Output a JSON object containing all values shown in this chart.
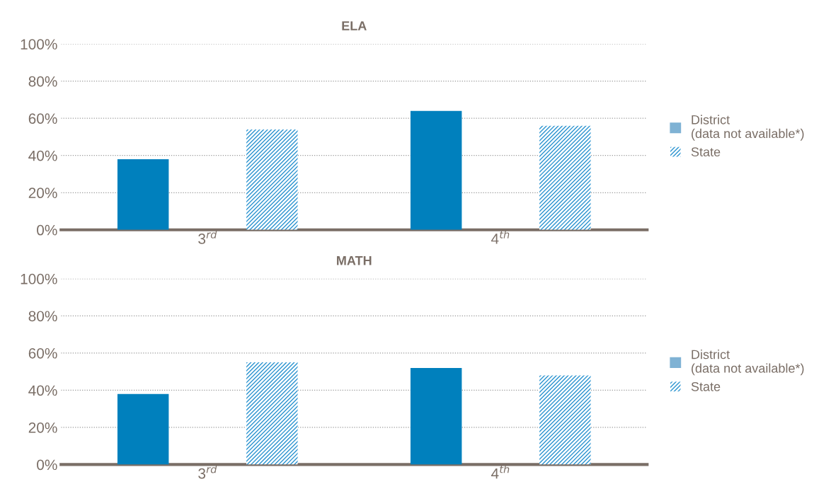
{
  "chart_data": [
    {
      "type": "bar",
      "title": "ELA",
      "categories": [
        "3$^{rd}$",
        "4$^{th}$"
      ],
      "series": [
        {
          "color": "#0080bd",
          "values": [
            38,
            64
          ]
        },
        {
          "name": "District\n(data not available*)",
          "color": "#7fb2d4",
          "values": [
            null,
            null
          ]
        },
        {
          "name": "State",
          "color": "#2a93d0",
          "values": [
            54,
            56
          ]
        }
      ],
      "ylim": [
        0,
        100
      ],
      "yticks": [
        {
          "value": 0,
          "label": "0%"
        },
        {
          "value": 20,
          "label": "20%"
        },
        {
          "value": 40,
          "label": "40%"
        },
        {
          "value": 60,
          "label": "60%"
        },
        {
          "value": 80,
          "label": "80%"
        },
        {
          "value": 100,
          "label": "100%"
        }
      ],
      "grid": "y",
      "legend": "right"
    },
    {
      "type": "bar",
      "title": "MATH",
      "categories": [
        "3$^{rd}$",
        "4$^{th}$"
      ],
      "series": [
        {
          "color": "#0080bd",
          "values": [
            38,
            52
          ]
        },
        {
          "name": "District\n(data not available*)",
          "color": "#7fb2d4",
          "values": [
            null,
            null
          ]
        },
        {
          "name": "State",
          "color": "#2a93d0",
          "values": [
            55,
            48
          ]
        }
      ],
      "ylim": [
        0,
        100
      ],
      "yticks": [
        {
          "value": 0,
          "label": "0%"
        },
        {
          "value": 20,
          "label": "20%"
        },
        {
          "value": 40,
          "label": "40%"
        },
        {
          "value": 60,
          "label": "60%"
        },
        {
          "value": 80,
          "label": "80%"
        },
        {
          "value": 100,
          "label": "100%"
        }
      ],
      "grid": "y",
      "legend": "right"
    }
  ]
}
